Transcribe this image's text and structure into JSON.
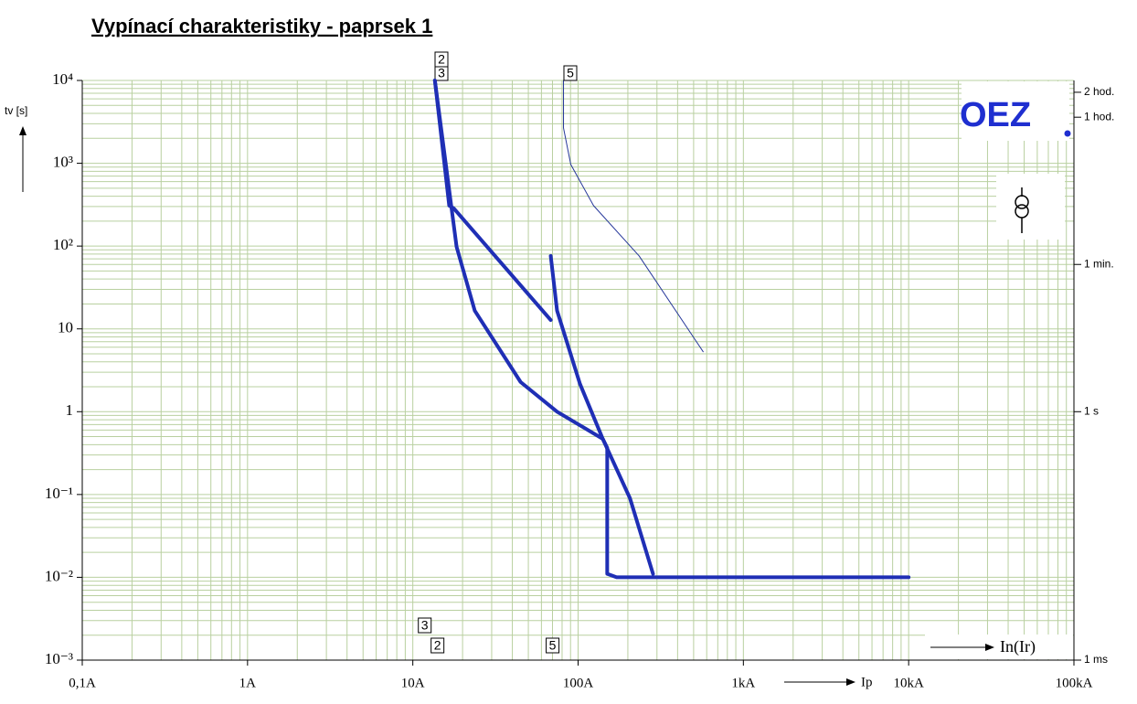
{
  "chart_data": {
    "type": "line",
    "title": "Vypínací charakteristiky - paprsek 1",
    "y_label": "tv [s]",
    "x_annotation": "Ip",
    "x_annotation2": "In(Ir)",
    "logo": "OEZ",
    "xlog": true,
    "ylog": true,
    "grid": true,
    "minor_grid": true,
    "grid_color": "#b9d0a0",
    "xlim": [
      0.1,
      100000
    ],
    "xticks": [
      {
        "value": 0.1,
        "label": "0,1A"
      },
      {
        "value": 1,
        "label": "1A"
      },
      {
        "value": 10,
        "label": "10A"
      },
      {
        "value": 100,
        "label": "100A"
      },
      {
        "value": 1000,
        "label": "1kA"
      },
      {
        "value": 10000,
        "label": "10kA"
      },
      {
        "value": 100000,
        "label": "100kA"
      }
    ],
    "ylim": [
      0.001,
      10000
    ],
    "yticks": [
      {
        "value": 10000,
        "label": "10⁴"
      },
      {
        "value": 1000,
        "label": "10³"
      },
      {
        "value": 100,
        "label": "10²"
      },
      10,
      1,
      {
        "value": 0.1,
        "label": "10⁻¹"
      },
      {
        "value": 0.01,
        "label": "10⁻²"
      },
      {
        "value": 0.001,
        "label": "10⁻³"
      }
    ],
    "y2lim": [
      0.001,
      10000
    ],
    "y2ticks": [
      {
        "value": 7200,
        "label": "2 hod."
      },
      {
        "value": 3600,
        "label": "1 hod."
      },
      {
        "value": 60,
        "label": "1 min."
      },
      {
        "value": 1,
        "label": "1 s"
      },
      {
        "value": 0.001,
        "label": "1 ms"
      }
    ],
    "series": [
      {
        "name": "3",
        "color": "#1f2fb5",
        "width": 4,
        "x": [
          13.6,
          16.6,
          17.7,
          68.3,
          null,
          68.3,
          74.6,
          102.6,
          141,
          206,
          284
        ],
        "values": [
          10000,
          308,
          285,
          12.8,
          null,
          76,
          16.6,
          2.17,
          0.47,
          0.09,
          0.011
        ]
      },
      {
        "name": "2",
        "color": "#1f2fb5",
        "width": 4,
        "x": [
          13.6,
          18.4,
          23.7,
          44.9,
          74.6,
          141,
          150,
          150,
          171,
          10000
        ],
        "values": [
          10000,
          98,
          16.6,
          2.28,
          1,
          0.47,
          0.366,
          0.011,
          0.01,
          0.01
        ]
      },
      {
        "name": "5",
        "color": "#26379a",
        "width": 1,
        "x": [
          81.6,
          81.6,
          90.3,
          124,
          234,
          571
        ],
        "values": [
          10000,
          2670,
          967,
          308,
          76,
          5.3
        ]
      }
    ],
    "markers": [
      {
        "label": "3",
        "x": 10.8
      },
      {
        "label": "2",
        "x": 12.9
      },
      {
        "label": "5",
        "x": 64.1
      }
    ]
  }
}
